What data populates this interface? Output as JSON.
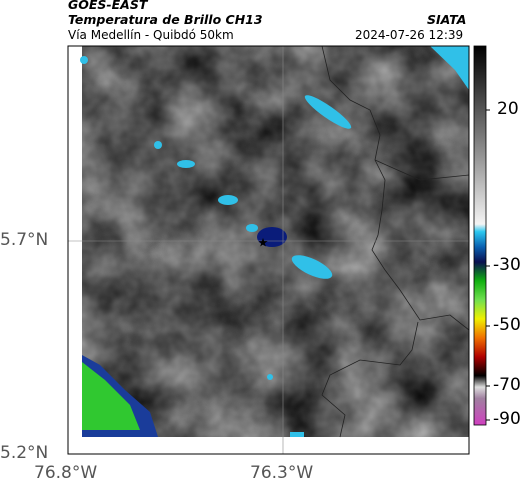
{
  "header": {
    "satellite": "GOES-EAST",
    "title": "Temperatura de Brillo CH13",
    "organization": "SIATA",
    "subtitle": "Vía Medellín - Quibdó 50km",
    "timestamp": "2024-07-26 12:39"
  },
  "map": {
    "lat_labels": [
      "5.7°N",
      "5.2°N"
    ],
    "lon_labels": [
      "76.8°W",
      "76.3°W"
    ]
  },
  "colorbar": {
    "ticks": [
      "20",
      "-30",
      "-50",
      "-70",
      "-90"
    ]
  }
}
